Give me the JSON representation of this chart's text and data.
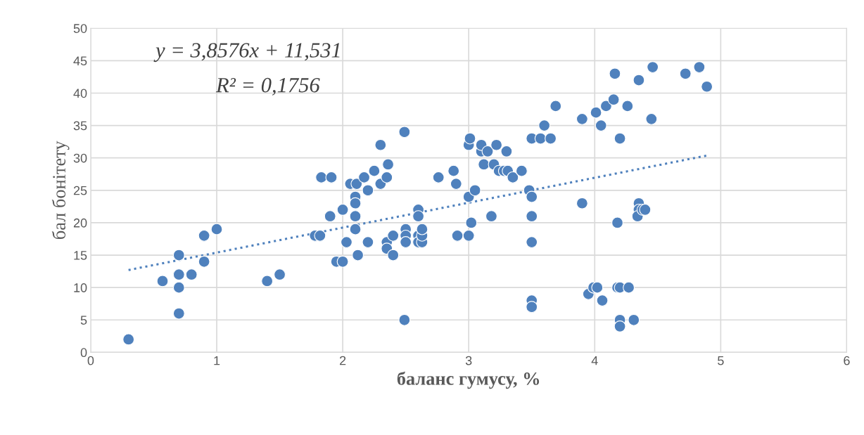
{
  "chart_data": {
    "type": "scatter",
    "xlabel": "баланс гумусу, %",
    "ylabel": "бал бонітету",
    "annotations": [
      "y = 3,8576x + 11,531",
      "R² = 0,1756"
    ],
    "xlim": [
      0,
      6
    ],
    "xticks": [
      0,
      1,
      2,
      3,
      4,
      5,
      6
    ],
    "ylim": [
      0,
      50
    ],
    "yticks": [
      0,
      5,
      10,
      15,
      20,
      25,
      30,
      35,
      40,
      45,
      50
    ],
    "grid": true,
    "marker": "circle",
    "series": [
      {
        "color": "#4f81bd",
        "x": [
          0.3,
          0.7,
          0.7,
          0.7,
          0.7,
          0.57,
          0.8,
          0.9,
          0.9,
          1.0,
          1.4,
          1.5,
          1.78,
          1.82,
          1.83,
          1.91,
          1.9,
          1.95,
          2.0,
          2.0,
          2.03,
          2.06,
          2.11,
          2.1,
          2.1,
          2.1,
          2.1,
          2.12,
          2.17,
          2.2,
          2.2,
          2.25,
          2.3,
          2.3,
          2.35,
          2.36,
          2.35,
          2.35,
          2.4,
          2.4,
          2.49,
          2.49,
          2.5,
          2.5,
          2.5,
          2.6,
          2.6,
          2.6,
          2.6,
          2.63,
          2.63,
          2.63,
          2.76,
          2.88,
          2.9,
          2.91,
          3.0,
          3.0,
          3.0,
          3.01,
          3.02,
          3.05,
          3.1,
          3.1,
          3.12,
          3.15,
          3.18,
          3.2,
          3.22,
          3.24,
          3.28,
          3.3,
          3.31,
          3.35,
          3.42,
          3.48,
          3.5,
          3.5,
          3.5,
          3.5,
          3.5,
          3.5,
          3.57,
          3.6,
          3.65,
          3.69,
          3.9,
          3.9,
          3.95,
          3.99,
          4.02,
          4.01,
          4.05,
          4.06,
          4.09,
          4.15,
          4.16,
          4.18,
          4.18,
          4.2,
          4.2,
          4.2,
          4.2,
          4.26,
          4.27,
          4.31,
          4.35,
          4.35,
          4.35,
          4.34,
          4.38,
          4.4,
          4.45,
          4.46,
          4.72,
          4.83,
          4.89
        ],
        "values": [
          2,
          6,
          10,
          12,
          15,
          11,
          12,
          14,
          18,
          19,
          11,
          12,
          18,
          18,
          27,
          27,
          21,
          14,
          14,
          22,
          17,
          26,
          26,
          24,
          23,
          21,
          19,
          15,
          27,
          25,
          17,
          28,
          32,
          26,
          27,
          29,
          17,
          16,
          18,
          15,
          34,
          5,
          19,
          18,
          17,
          22,
          21,
          18,
          17,
          17,
          18,
          19,
          27,
          28,
          26,
          18,
          24,
          18,
          32,
          33,
          20,
          25,
          31,
          32,
          29,
          31,
          21,
          29,
          32,
          28,
          28,
          31,
          28,
          27,
          28,
          25,
          24,
          21,
          17,
          33,
          8,
          7,
          33,
          35,
          33,
          38,
          36,
          23,
          9,
          10,
          10,
          37,
          35,
          8,
          38,
          39,
          43,
          20,
          10,
          10,
          33,
          5,
          4,
          38,
          10,
          5,
          42,
          23,
          22,
          21,
          22,
          22,
          36,
          44,
          43,
          44,
          41
        ]
      },
      {
        "type": "line",
        "color": "#4f81bd",
        "line_style": "dotted",
        "marker": "none",
        "x": [
          0.3,
          4.9
        ],
        "values": [
          12.7,
          30.4
        ]
      }
    ]
  }
}
